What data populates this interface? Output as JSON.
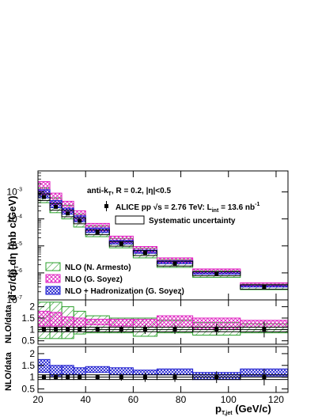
{
  "chart_data": {
    "type": "scatter",
    "x_bin_edges": [
      20,
      25,
      30,
      35,
      40,
      50,
      60,
      70,
      85,
      105,
      125
    ],
    "xlim": [
      20,
      125
    ],
    "x_ticks": [
      "20",
      "40",
      "60",
      "80",
      "100",
      "120"
    ],
    "top_panel": {
      "ylabel": "d²σ/dp_{T}dη (mb c/GeV)",
      "yscale": "log",
      "ylim": [
        1e-07,
        0.006
      ],
      "y_ticks": [
        {
          "value": 1e-07,
          "label_base": "10",
          "label_exp": "-7"
        },
        {
          "value": 1e-06,
          "label_base": "10",
          "label_exp": "-6"
        },
        {
          "value": 1e-05,
          "label_base": "10",
          "label_exp": "-5"
        },
        {
          "value": 0.0001,
          "label_base": "10",
          "label_exp": "-4"
        },
        {
          "value": 0.001,
          "label_base": "10",
          "label_exp": "-3"
        }
      ],
      "data_x": [
        22.5,
        27.5,
        32.5,
        37.5,
        45,
        55,
        65,
        77.5,
        95,
        115
      ],
      "data_y": [
        0.00065,
        0.00028,
        0.00016,
        8.5e-05,
        3.2e-05,
        1.2e-05,
        5.5e-06,
        2.2e-06,
        9.5e-07,
        3e-07
      ],
      "series": [
        {
          "name": "NLO (N. Armesto)",
          "color": "#2ca02c",
          "pattern": "hatchGreen",
          "low": [
            0.0004,
            0.00017,
            0.0001,
            5e-05,
            2.2e-05,
            8.5e-06,
            3.6e-06,
            1.6e-06,
            6.8e-07,
            2.4e-07
          ],
          "high": [
            0.0014,
            0.0006,
            0.00032,
            0.00015,
            5.5e-05,
            1.9e-05,
            8.2e-06,
            3.1e-06,
            1.2e-06,
            3.8e-07
          ]
        },
        {
          "name": "NLO (G. Soyez)",
          "color": "#e020c0",
          "pattern": "hatchMagenta",
          "low": [
            0.0008,
            0.00033,
            0.00018,
            9e-05,
            3.6e-05,
            1.3e-05,
            5.8e-06,
            2.4e-06,
            9.8e-07,
            3.2e-07
          ],
          "high": [
            0.0024,
            0.0009,
            0.00045,
            0.0002,
            6.8e-05,
            2.3e-05,
            9.5e-06,
            3.6e-06,
            1.4e-06,
            4.3e-07
          ]
        },
        {
          "name": "NLO + Hadronization (G. Soyez)",
          "color": "#1f1fd0",
          "pattern": "hatchBlue",
          "low": [
            0.0006,
            0.00026,
            0.00015,
            7.8e-05,
            3.1e-05,
            1.18e-05,
            5.3e-06,
            2.2e-06,
            9e-07,
            3e-07
          ],
          "high": [
            0.0012,
            0.00048,
            0.00025,
            0.00013,
            4.6e-05,
            1.6e-05,
            7e-06,
            2.8e-06,
            1.1e-06,
            3.6e-07
          ]
        }
      ],
      "sys_low": [
        0.00048,
        0.00021,
        0.00012,
        6.6e-05,
        2.6e-05,
        9.8e-06,
        4.4e-06,
        1.8e-06,
        7.8e-07,
        2.5e-07
      ],
      "sys_high": [
        0.00085,
        0.00037,
        0.00021,
        0.00011,
        3.9e-05,
        1.45e-05,
        6.7e-06,
        2.7e-06,
        1.1e-06,
        3.6e-07
      ]
    },
    "middle_panel": {
      "ylabel": "NLO/data",
      "ylim": [
        0.35,
        2.3
      ],
      "y_ticks": [
        "0.5",
        "1",
        "1.5",
        "2"
      ],
      "y_tick_values": [
        0.5,
        1,
        1.5,
        2
      ],
      "green_low": [
        0.6,
        0.6,
        0.6,
        0.8,
        0.85,
        0.85,
        0.7,
        0.85,
        0.75,
        0.85
      ],
      "green_high": [
        2.2,
        2.2,
        2.0,
        1.8,
        1.6,
        1.5,
        1.5,
        1.4,
        1.3,
        1.25
      ],
      "magenta_low": [
        1.15,
        1.15,
        1.1,
        1.1,
        1.2,
        1.15,
        1.1,
        1.1,
        1.0,
        1.1
      ],
      "magenta_high": [
        1.8,
        1.75,
        1.55,
        1.5,
        1.45,
        1.45,
        1.45,
        1.6,
        1.5,
        1.4
      ],
      "ratio_y": [
        1.0,
        1.0,
        1.0,
        1.0,
        1.0,
        1.0,
        1.0,
        1.0,
        1.0,
        1.0
      ],
      "ratio_err": [
        0.1,
        0.1,
        0.1,
        0.1,
        0.1,
        0.15,
        0.2,
        0.2,
        0.25,
        0.35
      ]
    },
    "bottom_panel": {
      "ylabel": "NLO/data",
      "ylim": [
        0.35,
        2.3
      ],
      "y_ticks": [
        "0.5",
        "1",
        "1.5",
        "2"
      ],
      "y_tick_values": [
        0.5,
        1,
        1.5,
        2
      ],
      "blue_low": [
        1.2,
        1.05,
        1.1,
        1.1,
        1.2,
        1.1,
        1.1,
        1.1,
        0.9,
        1.05
      ],
      "blue_high": [
        1.75,
        1.5,
        1.5,
        1.4,
        1.45,
        1.4,
        1.3,
        1.35,
        1.2,
        1.35
      ],
      "ratio_y": [
        1.0,
        1.0,
        1.0,
        1.0,
        1.0,
        1.0,
        1.0,
        1.0,
        1.0,
        1.0
      ],
      "ratio_err": [
        0.1,
        0.1,
        0.1,
        0.1,
        0.1,
        0.15,
        0.2,
        0.2,
        0.25,
        0.35
      ]
    },
    "x_axis_title": "p_{T,jet} (GeV/c)"
  },
  "labels": {
    "algo_line": "anti-k",
    "algo_sub": "T",
    "algo_rest": ", R = 0.2, |η|<0.5",
    "data_entry": "ALICE pp  √s = 2.76 TeV: L",
    "data_entry_sub": "int",
    "data_entry_rest": " = 13.6 nb",
    "data_entry_sup": "-1",
    "sys_entry": "Systematic uncertainty",
    "legend_armesto": "NLO (N. Armesto)",
    "legend_soyez": "NLO (G. Soyez)",
    "legend_hadron": "NLO + Hadronization (G. Soyez)",
    "x_title_main": "p",
    "x_title_sub": "T,jet",
    "x_title_unit": " (GeV/c)",
    "y_title_main": "d",
    "y_title_sup": "2",
    "y_title_mid": "σ/dp",
    "y_title_sub": "T",
    "y_title_end": "dη (mb c/GeV)",
    "ratio_ylabel_mid": "NLO/data",
    "ratio_ylabel_bot": "NLO/data"
  }
}
